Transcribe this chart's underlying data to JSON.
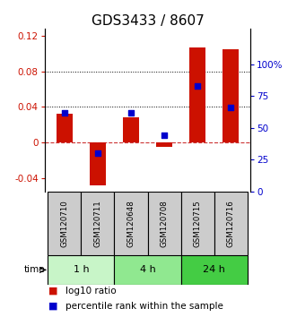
{
  "title": "GDS3433 / 8607",
  "samples": [
    "GSM120710",
    "GSM120711",
    "GSM120648",
    "GSM120708",
    "GSM120715",
    "GSM120716"
  ],
  "log10_ratio": [
    0.032,
    -0.048,
    0.028,
    -0.005,
    0.107,
    0.105
  ],
  "percentile_rank": [
    62,
    30,
    62,
    44,
    83,
    66
  ],
  "time_groups": [
    {
      "label": "1 h",
      "start": 0,
      "end": 2,
      "color": "#c8f5c8"
    },
    {
      "label": "4 h",
      "start": 2,
      "end": 4,
      "color": "#90e890"
    },
    {
      "label": "24 h",
      "start": 4,
      "end": 6,
      "color": "#44cc44"
    }
  ],
  "bar_color": "#cc1100",
  "dot_color": "#0000cc",
  "left_ylim": [
    -0.055,
    0.128
  ],
  "right_ylim": [
    0,
    128
  ],
  "left_yticks": [
    -0.04,
    0.0,
    0.04,
    0.08,
    0.12
  ],
  "right_yticks": [
    0,
    25,
    50,
    75,
    100
  ],
  "left_ytick_labels": [
    "-0.04",
    "0",
    "0.04",
    "0.08",
    "0.12"
  ],
  "right_ytick_labels": [
    "0",
    "25",
    "50",
    "75",
    "100%"
  ],
  "dotted_lines": [
    0.04,
    0.08
  ],
  "dashed_zero_color": "#cc3333",
  "plot_bg": "#ffffff",
  "outer_bg": "#ffffff",
  "sample_box_color": "#cccccc",
  "sample_box_border": "#000000",
  "title_fontsize": 11,
  "tick_fontsize": 7.5,
  "legend_fontsize": 7.5,
  "bar_width": 0.5
}
